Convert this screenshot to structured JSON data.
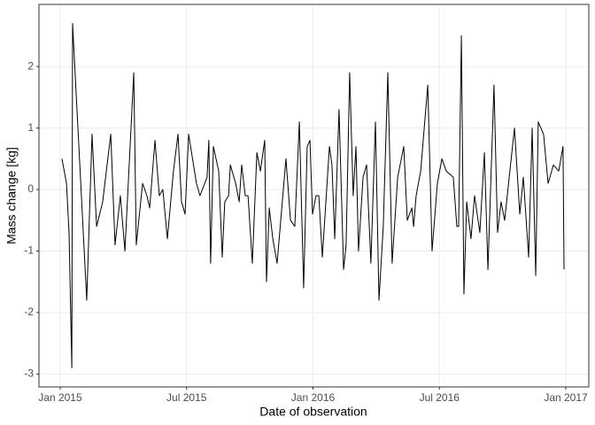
{
  "chart_data": {
    "type": "line",
    "xlabel": "Date of observation",
    "ylabel": "Mass change [kg]",
    "color": "#000000",
    "grid": true,
    "xlim": [
      2014.916,
      2017.091
    ],
    "ylim": [
      -3.21,
      3.01
    ],
    "xticks": [
      {
        "value": 2015,
        "label": "Jan 2015"
      },
      {
        "value": 2015.5,
        "label": "Jul 2015"
      },
      {
        "value": 2016,
        "label": "Jan 2016"
      },
      {
        "value": 2016.5,
        "label": "Jul 2016"
      },
      {
        "value": 2017,
        "label": "Jan 2017"
      }
    ],
    "yticks": [
      -3,
      -2,
      -1,
      0,
      1,
      2
    ],
    "x": [
      2015.007,
      2015.025,
      2015.035,
      2015.046,
      2015.049,
      2015.105,
      2015.126,
      2015.144,
      2015.168,
      2015.2,
      2015.217,
      2015.238,
      2015.256,
      2015.291,
      2015.301,
      2015.326,
      2015.343,
      2015.354,
      2015.375,
      2015.392,
      2015.406,
      2015.424,
      2015.448,
      2015.466,
      2015.48,
      2015.494,
      2015.508,
      2015.539,
      2015.553,
      2015.581,
      2015.588,
      2015.595,
      2015.606,
      2015.627,
      2015.641,
      2015.651,
      2015.666,
      2015.673,
      2015.694,
      2015.708,
      2015.718,
      2015.732,
      2015.743,
      2015.76,
      2015.778,
      2015.792,
      2015.809,
      2015.816,
      2015.827,
      2015.841,
      2015.858,
      2015.893,
      2015.911,
      2015.928,
      2015.946,
      2015.963,
      2015.977,
      2015.988,
      2015.998,
      2016.012,
      2016.023,
      2016.037,
      2016.065,
      2016.075,
      2016.086,
      2016.103,
      2016.121,
      2016.131,
      2016.145,
      2016.159,
      2016.17,
      2016.18,
      2016.198,
      2016.212,
      2016.229,
      2016.247,
      2016.261,
      2016.278,
      2016.296,
      2016.313,
      2016.335,
      2016.359,
      2016.373,
      2016.391,
      2016.398,
      2016.408,
      2016.426,
      2016.454,
      2016.471,
      2016.492,
      2016.51,
      2016.527,
      2016.555,
      2016.569,
      2016.576,
      2016.587,
      2016.597,
      2016.608,
      2016.625,
      2016.639,
      2016.66,
      2016.678,
      2016.692,
      2016.716,
      2016.73,
      2016.744,
      2016.758,
      2016.797,
      2016.818,
      2016.832,
      2016.853,
      2016.867,
      2016.881,
      2016.891,
      2016.912,
      2016.93,
      2016.951,
      2016.972,
      2016.989,
      2016.993
    ],
    "values": [
      0.5,
      0.1,
      -0.7,
      -2.9,
      2.7,
      -1.8,
      0.9,
      -0.6,
      -0.2,
      0.9,
      -0.9,
      -0.1,
      -1.0,
      1.9,
      -0.9,
      0.1,
      -0.1,
      -0.3,
      0.8,
      -0.1,
      0.0,
      -0.8,
      0.3,
      0.9,
      -0.2,
      -0.4,
      0.9,
      0.1,
      -0.1,
      0.2,
      0.8,
      -1.2,
      0.7,
      0.3,
      -1.1,
      -0.2,
      -0.1,
      0.4,
      0.1,
      -0.2,
      0.4,
      -0.1,
      -0.1,
      -1.2,
      0.6,
      0.3,
      0.8,
      -1.5,
      -0.3,
      -0.8,
      -1.2,
      0.5,
      -0.5,
      -0.6,
      1.1,
      -1.6,
      0.7,
      0.8,
      -0.4,
      -0.1,
      -0.1,
      -1.1,
      0.7,
      0.4,
      -0.8,
      1.3,
      -1.3,
      -0.9,
      1.9,
      -0.1,
      0.7,
      -1.0,
      0.2,
      0.4,
      -1.2,
      1.1,
      -1.8,
      -0.6,
      1.9,
      -1.2,
      0.2,
      0.7,
      -0.5,
      -0.3,
      -0.6,
      -0.1,
      0.3,
      1.7,
      -1.0,
      0.1,
      0.5,
      0.3,
      0.2,
      -0.6,
      -0.6,
      2.5,
      -1.7,
      -0.2,
      -0.8,
      -0.1,
      -0.7,
      0.6,
      -1.3,
      1.7,
      -0.7,
      -0.2,
      -0.5,
      1.0,
      -0.4,
      0.2,
      -1.1,
      1.0,
      -1.4,
      1.1,
      0.9,
      0.1,
      0.4,
      0.3,
      0.7,
      -1.3
    ]
  }
}
